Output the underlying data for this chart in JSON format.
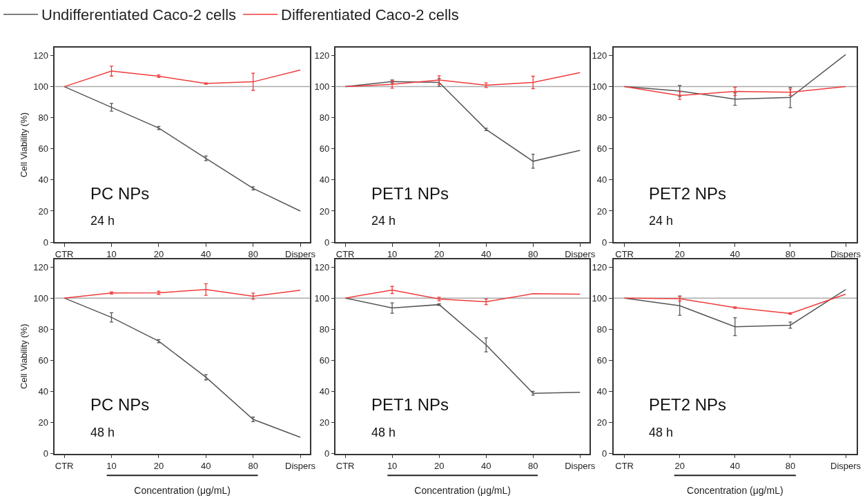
{
  "chart_data": [
    {
      "type": "line",
      "annotations": [
        "PC NPs",
        "24 h"
      ],
      "ylabel": "Cell Viability (%)",
      "categories": [
        "CTR",
        "10",
        "20",
        "40",
        "80",
        "Dispers"
      ],
      "ylim": [
        0,
        125
      ],
      "yticks": [
        0,
        20,
        40,
        60,
        80,
        100,
        120
      ],
      "grid": false,
      "legend": "top",
      "ref_lines": [
        {
          "axis": "y",
          "value": 100,
          "color": "#aaaaaa"
        }
      ],
      "series": [
        {
          "name": "Undifferentiated Caco-2 cells",
          "color": "#555555",
          "values": [
            100,
            86.7,
            73.4,
            53.9,
            34.6,
            20
          ],
          "errors": [
            null,
            2.5,
            1,
            1.5,
            1,
            null
          ]
        },
        {
          "name": "Differentiated Caco-2 cells",
          "color": "#f03a3a",
          "values": [
            100,
            110,
            106.7,
            102,
            103.1,
            110.7
          ],
          "errors": [
            null,
            3.2,
            0.8,
            0.4,
            5.5,
            null
          ]
        }
      ]
    },
    {
      "type": "line",
      "annotations": [
        "PET1 NPs",
        "24 h"
      ],
      "categories": [
        "CTR",
        "10",
        "20",
        "40",
        "80",
        "Dispers"
      ],
      "ylim": [
        0,
        125
      ],
      "yticks": [
        0,
        20,
        40,
        60,
        80,
        100,
        120
      ],
      "grid": false,
      "ref_lines": [
        {
          "axis": "y",
          "value": 100,
          "color": "#aaaaaa"
        }
      ],
      "series": [
        {
          "color": "#555555",
          "values": [
            100,
            103.3,
            102.7,
            72.5,
            52,
            59
          ],
          "errors": [
            null,
            1,
            2.5,
            0.8,
            4.5,
            null
          ]
        },
        {
          "color": "#f03a3a",
          "values": [
            100,
            101.5,
            104.2,
            100.9,
            102.7,
            109
          ],
          "errors": [
            null,
            2.5,
            2.8,
            1.5,
            4,
            null
          ]
        }
      ]
    },
    {
      "type": "line",
      "annotations": [
        "PET2 NPs",
        "24 h"
      ],
      "categories": [
        "CTR",
        "20",
        "40",
        "80",
        "Dispers"
      ],
      "ylim": [
        0,
        125
      ],
      "yticks": [
        0,
        20,
        40,
        60,
        80,
        100,
        120
      ],
      "grid": false,
      "ref_lines": [
        {
          "axis": "y",
          "value": 100,
          "color": "#aaaaaa"
        }
      ],
      "series": [
        {
          "color": "#555555",
          "values": [
            100,
            97.2,
            92,
            93,
            120.6
          ],
          "errors": [
            null,
            3.5,
            4,
            6.5,
            null
          ]
        },
        {
          "color": "#f03a3a",
          "values": [
            100,
            94.3,
            96.9,
            96.4,
            100
          ],
          "errors": [
            null,
            2.5,
            2.7,
            2,
            null
          ]
        }
      ]
    },
    {
      "type": "line",
      "annotations": [
        "PC NPs",
        "48 h"
      ],
      "ylabel": "Cell Viability (%)",
      "xlabel": "Concentration (μg/mL)",
      "categories": [
        "CTR",
        "10",
        "20",
        "40",
        "80",
        "Dispers"
      ],
      "ylim": [
        0,
        125
      ],
      "yticks": [
        0,
        20,
        40,
        60,
        80,
        100,
        120
      ],
      "grid": false,
      "ref_lines": [
        {
          "axis": "y",
          "value": 100,
          "color": "#aaaaaa"
        }
      ],
      "series": [
        {
          "color": "#555555",
          "values": [
            100,
            87.6,
            72.3,
            49.1,
            22,
            10.5
          ],
          "errors": [
            null,
            3,
            1,
            1.7,
            1.5,
            null
          ]
        },
        {
          "color": "#f03a3a",
          "values": [
            100,
            103.3,
            103.4,
            105.5,
            101.2,
            105.1
          ],
          "errors": [
            null,
            0.7,
            1,
            3.7,
            2,
            null
          ]
        }
      ]
    },
    {
      "type": "line",
      "annotations": [
        "PET1 NPs",
        "48 h"
      ],
      "xlabel": "Concentration (μg/mL)",
      "categories": [
        "CTR",
        "10",
        "20",
        "40",
        "80",
        "Dispers"
      ],
      "ylim": [
        0,
        125
      ],
      "yticks": [
        0,
        20,
        40,
        60,
        80,
        100,
        120
      ],
      "grid": false,
      "ref_lines": [
        {
          "axis": "y",
          "value": 100,
          "color": "#aaaaaa"
        }
      ],
      "series": [
        {
          "color": "#555555",
          "values": [
            100,
            93.6,
            95.8,
            69.9,
            38.8,
            39.4
          ],
          "errors": [
            null,
            3.3,
            0.5,
            4.5,
            1.2,
            null
          ]
        },
        {
          "color": "#f03a3a",
          "values": [
            100,
            105.2,
            99.4,
            97.6,
            102.8,
            102.5
          ],
          "errors": [
            null,
            2.3,
            1.2,
            1.8,
            null,
            null
          ]
        }
      ]
    },
    {
      "type": "line",
      "annotations": [
        "PET2 NPs",
        "48 h"
      ],
      "xlabel": "Concentration (μg/mL)",
      "categories": [
        "CTR",
        "20",
        "40",
        "80",
        "Dispers"
      ],
      "ylim": [
        0,
        125
      ],
      "yticks": [
        0,
        20,
        40,
        60,
        80,
        100,
        120
      ],
      "grid": false,
      "ref_lines": [
        {
          "axis": "y",
          "value": 100,
          "color": "#aaaaaa"
        }
      ],
      "series": [
        {
          "color": "#555555",
          "values": [
            100,
            95.1,
            81.6,
            82.6,
            105.5
          ],
          "errors": [
            null,
            6.2,
            5.8,
            2,
            null
          ]
        },
        {
          "color": "#f03a3a",
          "values": [
            100,
            99.6,
            93.9,
            90.1,
            102.5
          ],
          "errors": [
            null,
            1.5,
            0.5,
            0.5,
            null
          ]
        }
      ]
    }
  ]
}
